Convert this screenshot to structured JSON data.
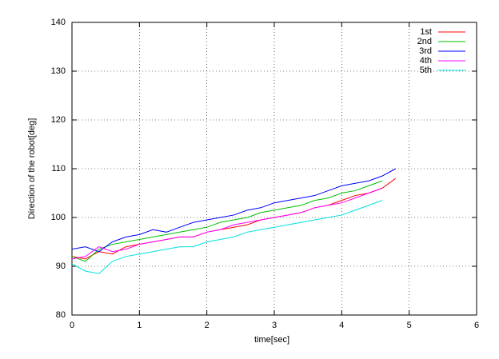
{
  "chart_data": {
    "type": "line",
    "xlabel": "time[sec]",
    "ylabel": "Direction of the robot[deg]",
    "xlim": [
      0,
      6
    ],
    "ylim": [
      80,
      140
    ],
    "xticks": [
      0,
      1,
      2,
      3,
      4,
      5,
      6
    ],
    "yticks": [
      80,
      90,
      100,
      110,
      120,
      130,
      140
    ],
    "grid": true,
    "legend": "top-right",
    "series": [
      {
        "name": "1st",
        "color": "#ff0000",
        "x": [
          0,
          0.2,
          0.4,
          0.6,
          0.8,
          1,
          1.2,
          1.4,
          1.6,
          1.8,
          2,
          2.2,
          2.4,
          2.6,
          2.8,
          3,
          3.2,
          3.4,
          3.6,
          3.8,
          4,
          4.2,
          4.4,
          4.6,
          4.8
        ],
        "values": [
          92,
          91.5,
          93,
          92.5,
          94,
          94.5,
          95,
          95.5,
          96,
          96,
          97,
          97.5,
          98,
          98.5,
          99.5,
          100,
          100.5,
          101,
          102,
          102.5,
          103.5,
          104.5,
          105,
          106,
          108
        ]
      },
      {
        "name": "2nd",
        "color": "#00c000",
        "x": [
          0,
          0.2,
          0.4,
          0.6,
          0.8,
          1,
          1.2,
          1.4,
          1.6,
          1.8,
          2,
          2.2,
          2.4,
          2.6,
          2.8,
          3,
          3.2,
          3.4,
          3.6,
          3.8,
          4,
          4.2,
          4.4,
          4.6
        ],
        "values": [
          92,
          91,
          93.5,
          94.5,
          95,
          95.5,
          96,
          96.5,
          97,
          97.5,
          98,
          99,
          99.5,
          100,
          101,
          101.5,
          102,
          102.5,
          103.5,
          104,
          105,
          105.5,
          106.5,
          107.5
        ]
      },
      {
        "name": "3rd",
        "color": "#0000ff",
        "x": [
          0,
          0.2,
          0.4,
          0.6,
          0.8,
          1,
          1.2,
          1.4,
          1.6,
          1.8,
          2,
          2.2,
          2.4,
          2.6,
          2.8,
          3,
          3.2,
          3.4,
          3.6,
          3.8,
          4,
          4.2,
          4.4,
          4.6,
          4.8
        ],
        "values": [
          93.5,
          94,
          93,
          95,
          96,
          96.5,
          97.5,
          97,
          98,
          99,
          99.5,
          100,
          100.5,
          101.5,
          102,
          103,
          103.5,
          104,
          104.5,
          105.5,
          106.5,
          107,
          107.5,
          108.5,
          110
        ]
      },
      {
        "name": "4th",
        "color": "#ff00ff",
        "x": [
          0,
          0.2,
          0.4,
          0.6,
          0.8,
          1,
          1.2,
          1.4,
          1.6,
          1.8,
          2,
          2.2,
          2.4,
          2.6,
          2.8,
          3,
          3.2,
          3.4,
          3.6,
          3.8,
          4,
          4.2,
          4.4,
          4.6
        ],
        "values": [
          91.5,
          92,
          94,
          93,
          93.5,
          94.5,
          95,
          95.5,
          96,
          96,
          97,
          97.5,
          98.5,
          99,
          99.5,
          100,
          100.5,
          101,
          102,
          102.5,
          103,
          104,
          105,
          106
        ]
      },
      {
        "name": "5th",
        "color": "#00e0e0",
        "x": [
          0,
          0.2,
          0.4,
          0.6,
          0.8,
          1,
          1.2,
          1.4,
          1.6,
          1.8,
          2,
          2.2,
          2.4,
          2.6,
          2.8,
          3,
          3.2,
          3.4,
          3.6,
          3.8,
          4,
          4.2,
          4.4,
          4.6
        ],
        "values": [
          90.5,
          89,
          88.5,
          91,
          92,
          92.5,
          93,
          93.5,
          94,
          94,
          95,
          95.5,
          96,
          97,
          97.5,
          98,
          98.5,
          99,
          99.5,
          100,
          100.5,
          101.5,
          102.5,
          103.5
        ]
      }
    ]
  }
}
